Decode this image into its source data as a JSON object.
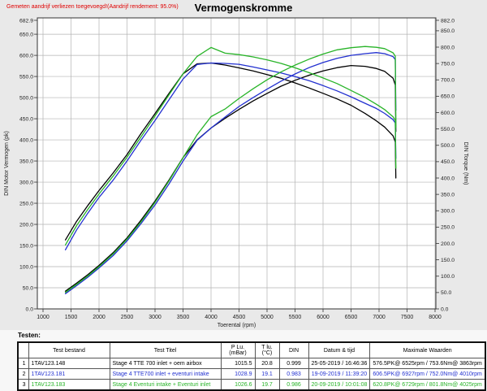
{
  "header": {
    "warning": "Gemeten aandrijf verliezen toegevoegd!(Aandrijf rendement: 95.0%)",
    "title": "Vermogenskromme"
  },
  "colors": {
    "black": "#000000",
    "blue": "#2230d0",
    "green": "#28b428",
    "warning_red": "#e00000",
    "grid": "#b3b3b3",
    "frame": "#333333",
    "plot_bg": "#ffffff",
    "page_bg": "#e9e9e9"
  },
  "chart_data": {
    "type": "line",
    "title": "Vermogenskromme",
    "xlabel": "Toerental (rpm)",
    "x_range": [
      1000,
      8000
    ],
    "x_ticks": [
      1000,
      1500,
      2000,
      2500,
      3000,
      3500,
      4000,
      4500,
      5000,
      5500,
      6000,
      6500,
      7000,
      7500,
      8000
    ],
    "grid": true,
    "left_axis": {
      "label": "DIN Motor Vermogen (pk)",
      "min": 0,
      "max": 682.9,
      "ticks": [
        682.9,
        650,
        600,
        550,
        500,
        450,
        400,
        350,
        300,
        250,
        200,
        150,
        100,
        50,
        0
      ]
    },
    "right_axis": {
      "label": "DIN Torque (Nm)",
      "min": 0,
      "max": 882,
      "ticks": [
        882,
        850,
        800,
        750,
        700,
        650,
        600,
        550,
        500,
        450,
        400,
        350,
        300,
        250,
        200,
        150,
        100,
        50,
        0
      ]
    },
    "rpm": [
      1400,
      1600,
      1800,
      2000,
      2250,
      2500,
      2750,
      3000,
      3250,
      3500,
      3750,
      4000,
      4250,
      4500,
      4750,
      5000,
      5250,
      5500,
      5750,
      6000,
      6250,
      6500,
      6750,
      6950,
      7100,
      7250,
      7290,
      7300
    ],
    "series": [
      {
        "name": "power-1TAV123.148",
        "test": "1TAV123.148",
        "kind": "power",
        "axis": "left",
        "color": "#000000",
        "values": [
          42,
          61,
          81,
          103,
          133,
          168,
          210,
          255,
          305,
          358,
          400,
          428,
          451,
          472,
          492,
          510,
          527,
          541,
          553,
          563,
          571,
          576,
          574,
          569,
          562,
          546,
          530,
          420
        ]
      },
      {
        "name": "torque-1TAV123.148",
        "test": "1TAV123.148",
        "kind": "torque",
        "axis": "right",
        "color": "#000000",
        "values": [
          210.7,
          267.8,
          316.0,
          361.7,
          415.1,
          471.9,
          536.3,
          597.0,
          659.1,
          718.4,
          749.1,
          751.5,
          745.3,
          736.6,
          727.4,
          716.3,
          705.0,
          690.8,
          675.4,
          658.8,
          641.7,
          622.3,
          597.2,
          575.0,
          555.9,
          528.8,
          510.6,
          400.0
        ]
      },
      {
        "name": "power-1TAV123.181",
        "test": "1TAV123.181",
        "kind": "power",
        "axis": "left",
        "color": "#2230d0",
        "values": [
          36,
          55,
          75,
          97,
          126,
          161,
          202,
          246,
          296,
          350,
          399,
          428,
          454,
          479,
          500,
          520,
          539,
          556,
          571,
          583,
          593,
          600,
          604,
          606.5,
          604,
          597,
          590,
          470
        ]
      },
      {
        "name": "torque-1TAV123.181",
        "test": "1TAV123.181",
        "kind": "torque",
        "axis": "right",
        "color": "#2230d0",
        "values": [
          180.6,
          241.4,
          292.6,
          340.6,
          393.3,
          452.3,
          515.9,
          575.9,
          639.6,
          702.3,
          747.2,
          751.5,
          750.2,
          747.6,
          739.3,
          730.4,
          721.1,
          709.9,
          697.4,
          682.4,
          666.3,
          648.2,
          628.4,
          612.8,
          597.4,
          578.3,
          568.4,
          460.0
        ]
      },
      {
        "name": "power-1TAV123.183",
        "test": "1TAV123.183",
        "kind": "power",
        "axis": "left",
        "color": "#28b428",
        "values": [
          39,
          58,
          78,
          100,
          130,
          165,
          206,
          252,
          303,
          358,
          412,
          455,
          473,
          498,
          521,
          542,
          561,
          577,
          591,
          603,
          613,
          618,
          621,
          619,
          616,
          606,
          598,
          430
        ]
      },
      {
        "name": "torque-1TAV123.183",
        "test": "1TAV123.183",
        "kind": "torque",
        "axis": "right",
        "color": "#28b428",
        "values": [
          195.6,
          254.6,
          304.3,
          351.2,
          405.8,
          463.5,
          526.1,
          589.9,
          654.7,
          718.4,
          771.6,
          798.9,
          781.6,
          777.2,
          770.3,
          761.3,
          750.4,
          736.8,
          721.9,
          705.8,
          688.8,
          667.7,
          646.2,
          625.5,
          609.3,
          587.0,
          576.0,
          430.0
        ]
      }
    ]
  },
  "table": {
    "caption": "Testen:",
    "columns": [
      "",
      "Test bestand",
      "Test Titel",
      "P Lu.(mBar)",
      "T lu.(°C)",
      "DIN",
      "Datum & tijd",
      "Maximale Waarden"
    ],
    "rows": [
      {
        "nr": "1",
        "bestand": "1TAV123.148",
        "titel": "Stage 4 TTE 700  inlet + oem airbox",
        "p_lu": "1015.5",
        "t_lu": "20.8",
        "din": "0.999",
        "datum": "25-05-2019 / 16:46:36",
        "max": "576.5PK@ 6525rpm / 753.6Nm@ 3863rpm",
        "color": "#000000"
      },
      {
        "nr": "2",
        "bestand": "1TAV123.181",
        "titel": "Stage 4 TTE700 inlet + eventuri intake",
        "p_lu": "1028.9",
        "t_lu": "19.1",
        "din": "0.983",
        "datum": "19-09-2019 / 11:39:20",
        "max": "606.5PK@ 6927rpm / 752.0Nm@ 4010rpm",
        "color": "#2230d0"
      },
      {
        "nr": "3",
        "bestand": "1TAV123.183",
        "titel": "Stage 4 Eventuri intake + Eventuri inlet",
        "p_lu": "1026.6",
        "t_lu": "19.7",
        "din": "0.986",
        "datum": "20-09-2019 / 10:01:08",
        "max": "620.8PK@ 6729rpm / 801.8Nm@ 4025rpm",
        "color": "#28b428"
      }
    ]
  }
}
